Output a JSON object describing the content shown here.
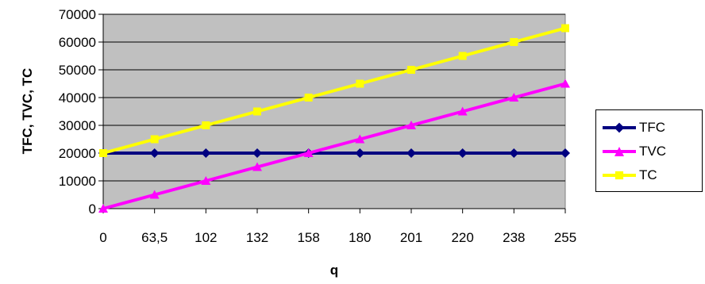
{
  "chart_data": {
    "type": "line",
    "title": "",
    "xlabel": "q",
    "ylabel": "TFC, TVC, TC",
    "categories": [
      "0",
      "63,5",
      "102",
      "132",
      "158",
      "180",
      "201",
      "220",
      "238",
      "255"
    ],
    "ylim": [
      0,
      70000
    ],
    "yticks": [
      0,
      10000,
      20000,
      30000,
      40000,
      50000,
      60000,
      70000
    ],
    "ytick_labels": [
      "0",
      "10000",
      "20000",
      "30000",
      "40000",
      "50000",
      "60000",
      "70000"
    ],
    "grid": true,
    "plot_background": "#c0c0c0",
    "legend_position": "right",
    "series": [
      {
        "name": "TFC",
        "color": "#000080",
        "marker": "diamond",
        "values": [
          20000,
          20000,
          20000,
          20000,
          20000,
          20000,
          20000,
          20000,
          20000,
          20000
        ]
      },
      {
        "name": "TVC",
        "color": "#ff00ff",
        "marker": "triangle",
        "values": [
          0,
          5000,
          10000,
          15000,
          20000,
          25000,
          30000,
          35000,
          40000,
          45000
        ]
      },
      {
        "name": "TC",
        "color": "#ffff00",
        "marker": "square",
        "values": [
          20000,
          25000,
          30000,
          35000,
          40000,
          45000,
          50000,
          55000,
          60000,
          65000
        ]
      }
    ]
  }
}
